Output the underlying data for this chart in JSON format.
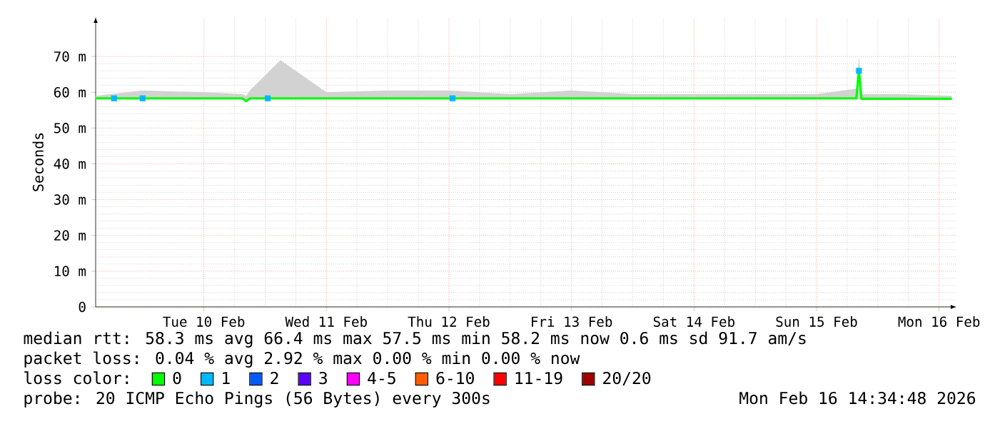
{
  "chart_data": {
    "type": "line",
    "ylabel": "Seconds",
    "x": [
      "2026-02-09T14:48",
      "2026-02-10T00:00",
      "2026-02-10T12:00",
      "2026-02-10T19:30",
      "2026-02-10T20:18",
      "2026-02-10T21:00",
      "2026-02-11T03:00",
      "2026-02-11T12:00",
      "2026-02-12T00:00",
      "2026-02-12T12:00",
      "2026-02-13T00:00",
      "2026-02-13T12:00",
      "2026-02-14T00:00",
      "2026-02-14T12:00",
      "2026-02-15T00:00",
      "2026-02-15T12:00",
      "2026-02-15T19:48",
      "2026-02-15T20:18",
      "2026-02-15T20:48",
      "2026-02-16T04:00",
      "2026-02-16T14:30"
    ],
    "xlim": [
      "2026-02-09T14:48",
      "2026-02-16T15:24"
    ],
    "xticks": [
      {
        "value": "2026-02-10T12:00",
        "label": "Tue 10 Feb"
      },
      {
        "value": "2026-02-11T12:00",
        "label": "Wed 11 Feb"
      },
      {
        "value": "2026-02-12T12:00",
        "label": "Thu 12 Feb"
      },
      {
        "value": "2026-02-13T12:00",
        "label": "Fri 13 Feb"
      },
      {
        "value": "2026-02-14T12:00",
        "label": "Sat 14 Feb"
      },
      {
        "value": "2026-02-15T12:00",
        "label": "Sun 15 Feb"
      },
      {
        "value": "2026-02-16T12:00",
        "label": "Mon 16 Feb"
      }
    ],
    "ylim": [
      0,
      81
    ],
    "yticks": [
      {
        "value": 0,
        "label": "0"
      },
      {
        "value": 10,
        "label": "10 m"
      },
      {
        "value": 20,
        "label": "20 m"
      },
      {
        "value": 30,
        "label": "30 m"
      },
      {
        "value": 40,
        "label": "40 m"
      },
      {
        "value": 50,
        "label": "50 m"
      },
      {
        "value": 60,
        "label": "60 m"
      },
      {
        "value": 70,
        "label": "70 m"
      }
    ],
    "grid": true,
    "legend": "bottom",
    "legend_title": "loss color:",
    "series": [
      {
        "name": "0",
        "color": "#00ff00",
        "values": [
          58.3,
          58.3,
          58.3,
          58.3,
          57.5,
          58.3,
          58.3,
          58.3,
          58.3,
          58.3,
          58.3,
          58.3,
          58.3,
          58.3,
          58.3,
          58.3,
          58.3,
          66.4,
          58.2,
          58.2,
          58.2
        ],
        "lower": [
          58,
          58,
          58,
          58,
          57.2,
          58,
          58,
          58,
          58,
          58,
          58,
          58,
          58,
          58,
          58,
          58,
          58,
          58,
          58,
          58,
          58
        ],
        "upper": [
          59,
          60.5,
          60,
          59.5,
          59,
          60.5,
          69,
          60,
          60.5,
          60.5,
          59.5,
          60.5,
          59.5,
          59.5,
          59.5,
          59.5,
          61,
          70,
          59.5,
          59.5,
          59
        ]
      },
      {
        "name": "1",
        "color": "#00b8ff",
        "type": "scatter",
        "marker": "square",
        "x": [
          "2026-02-09T18:24",
          "2026-02-10T00:00",
          "2026-02-11T00:30",
          "2026-02-12T12:42",
          "2026-02-15T20:18"
        ],
        "values": [
          58.3,
          58.3,
          58.3,
          58.3,
          66
        ]
      },
      {
        "name": "2",
        "color": "#0059ff",
        "values": [
          null,
          null,
          null,
          null,
          null,
          null,
          null,
          null,
          null,
          null,
          null,
          null,
          null,
          null,
          null,
          null,
          null,
          null,
          null,
          null,
          null
        ]
      },
      {
        "name": "3",
        "color": "#5e00ff",
        "values": [
          null,
          null,
          null,
          null,
          null,
          null,
          null,
          null,
          null,
          null,
          null,
          null,
          null,
          null,
          null,
          null,
          null,
          null,
          null,
          null,
          null
        ]
      },
      {
        "name": "4-5",
        "color": "#ff00ff",
        "values": [
          null,
          null,
          null,
          null,
          null,
          null,
          null,
          null,
          null,
          null,
          null,
          null,
          null,
          null,
          null,
          null,
          null,
          null,
          null,
          null,
          null
        ]
      },
      {
        "name": "6-10",
        "color": "#ff5e00",
        "values": [
          null,
          null,
          null,
          null,
          null,
          null,
          null,
          null,
          null,
          null,
          null,
          null,
          null,
          null,
          null,
          null,
          null,
          null,
          null,
          null,
          null
        ]
      },
      {
        "name": "11-19",
        "color": "#ff0000",
        "values": [
          null,
          null,
          null,
          null,
          null,
          null,
          null,
          null,
          null,
          null,
          null,
          null,
          null,
          null,
          null,
          null,
          null,
          null,
          null,
          null,
          null
        ]
      },
      {
        "name": "20/20",
        "color": "#a10000",
        "values": [
          null,
          null,
          null,
          null,
          null,
          null,
          null,
          null,
          null,
          null,
          null,
          null,
          null,
          null,
          null,
          null,
          null,
          null,
          null,
          null,
          null
        ]
      }
    ],
    "annotations": [
      "median rtt:  58.3 ms avg  66.4 ms max  57.5 ms min  58.2 ms now  0.6 ms sd  91.7   am/s",
      "packet loss: 0.04 % avg  2.92 % max  0.00 % min  0.00 % now",
      "probe:       20 ICMP Echo Pings (56 Bytes) every 300s",
      "Mon Feb 16 14:34:48 2026"
    ]
  }
}
